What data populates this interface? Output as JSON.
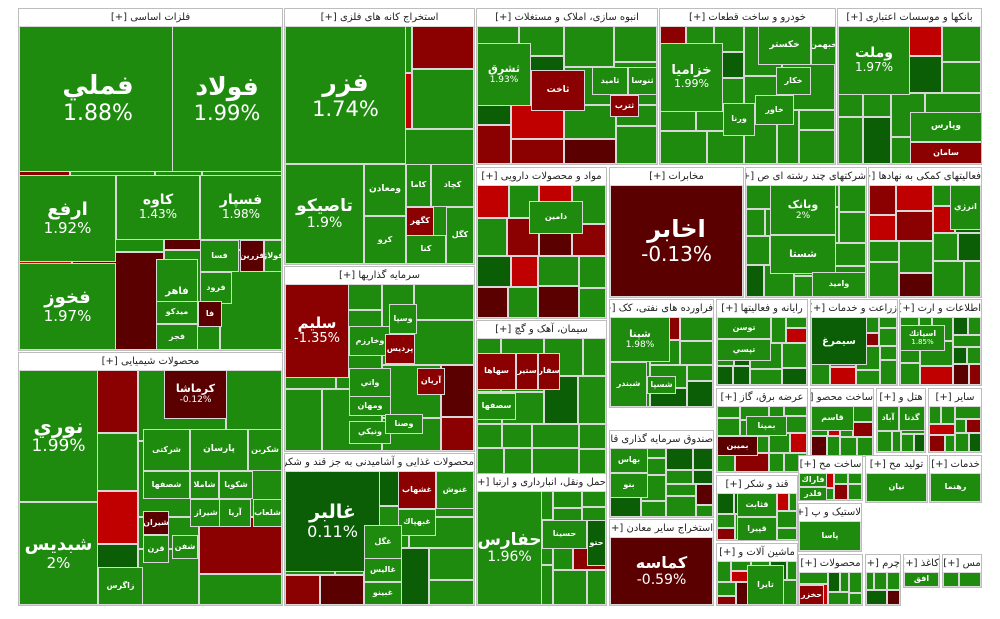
{
  "palette": {
    "green": "#1e8b0e",
    "green_dark": "#0b5e06",
    "red": "#c00000",
    "red_dark": "#5a0000",
    "red_mid": "#8b0000"
  },
  "sectors": [
    {
      "title": "فلزات اساسی [+]",
      "tiles": [
        {
          "sym": "فملي",
          "pct": "1.88%",
          "c": "green"
        },
        {
          "sym": "فولاد",
          "pct": "1.99%",
          "c": "green"
        },
        {
          "sym": "ارفع",
          "pct": "1.92%",
          "c": "green"
        },
        {
          "sym": "فخوز",
          "pct": "1.97%",
          "c": "green"
        },
        {
          "sym": "کاوه",
          "pct": "1.43%",
          "c": "green"
        },
        {
          "sym": "فسپار",
          "pct": "1.98%",
          "c": "green"
        },
        {
          "sym": "فسا",
          "c": "green"
        },
        {
          "sym": "فاهر",
          "c": "green"
        },
        {
          "sym": "فزرين",
          "c": "red_dark"
        },
        {
          "sym": "فولاژ",
          "c": "green"
        },
        {
          "sym": "فرود",
          "c": "green"
        },
        {
          "sym": "فا",
          "c": "red_dark"
        },
        {
          "sym": "فجر",
          "c": "green"
        },
        {
          "sym": "ميدکو",
          "c": "green"
        }
      ]
    },
    {
      "title": "استخراج کانه های فلزی [+]",
      "tiles": [
        {
          "sym": "فزر",
          "pct": "1.74%",
          "c": "green"
        },
        {
          "sym": "تاصيكو",
          "pct": "1.9%",
          "c": "green"
        },
        {
          "sym": "ومعادن",
          "c": "green"
        },
        {
          "sym": "کاما",
          "c": "green"
        },
        {
          "sym": "کچاد",
          "c": "green"
        },
        {
          "sym": "کگهر",
          "c": "red_mid"
        },
        {
          "sym": "کگل",
          "c": "green"
        },
        {
          "sym": "كرو",
          "c": "green"
        },
        {
          "sym": "کنا",
          "c": "green"
        }
      ]
    },
    {
      "title": "انبوه سازی، املاک و مستغلات [+]",
      "tiles": [
        {
          "sym": "ثشرق",
          "pct": "1.93%",
          "c": "green"
        },
        {
          "sym": "ثامید",
          "c": "green"
        },
        {
          "sym": "ثنوسا",
          "c": "green"
        },
        {
          "sym": "ثترب",
          "c": "red_mid"
        },
        {
          "sym": "ثاخت",
          "c": "red_mid"
        }
      ]
    },
    {
      "title": "خودرو و ساخت قطعات [+]",
      "tiles": [
        {
          "sym": "خزاميا",
          "pct": "1.99%",
          "c": "green"
        },
        {
          "sym": "خکستر",
          "c": "green"
        },
        {
          "sym": "خبهمن",
          "c": "green"
        },
        {
          "sym": "خکار",
          "c": "green"
        },
        {
          "sym": "خاور",
          "c": "green"
        },
        {
          "sym": "ورنا",
          "c": "green"
        }
      ]
    },
    {
      "title": "بانکها و موسسات اعتباری [+]",
      "tiles": [
        {
          "sym": "وملت",
          "pct": "1.97%",
          "c": "green"
        },
        {
          "sym": "وپارس",
          "c": "green"
        },
        {
          "sym": "سامان",
          "c": "red_mid"
        }
      ]
    },
    {
      "title": "مواد و محصولات دارویی [+]",
      "tiles": [
        {
          "sym": "دامین",
          "c": "green"
        }
      ]
    },
    {
      "title": "مخابرات [+]",
      "tiles": [
        {
          "sym": "اخابر",
          "pct": "-0.13%",
          "c": "red_dark"
        }
      ]
    },
    {
      "title": "شرکتهای چند رشته ای ص [+]",
      "tiles": [
        {
          "sym": "وبانک",
          "pct": "2%",
          "c": "green"
        },
        {
          "sym": "شستا",
          "c": "green"
        },
        {
          "sym": "واميد",
          "c": "green"
        }
      ]
    },
    {
      "title": "فعالیتهای کمکی به نهادها [+]",
      "tiles": [
        {
          "sym": "انرژي",
          "c": "green"
        }
      ]
    },
    {
      "title": "محصولات شیمیایی [+]",
      "tiles": [
        {
          "sym": "نوري",
          "pct": "1.99%",
          "c": "green"
        },
        {
          "sym": "شبديس",
          "pct": "2%",
          "c": "green"
        },
        {
          "sym": "کرماشا",
          "pct": "-0.12%",
          "c": "red_dark"
        },
        {
          "sym": "شرکتی",
          "c": "green"
        },
        {
          "sym": "پارسان",
          "c": "green"
        },
        {
          "sym": "شکربن",
          "c": "green"
        },
        {
          "sym": "شصفها",
          "c": "green"
        },
        {
          "sym": "شاملا",
          "c": "green"
        },
        {
          "sym": "شکويا",
          "c": "green"
        },
        {
          "sym": "شيراز",
          "c": "green"
        },
        {
          "sym": "آريا",
          "c": "green"
        },
        {
          "sym": "شلعاب",
          "c": "green"
        },
        {
          "sym": "شيران",
          "c": "red_dark"
        },
        {
          "sym": "شفن",
          "c": "green"
        },
        {
          "sym": "قرن",
          "c": "green"
        },
        {
          "sym": "زاگرس",
          "c": "green"
        }
      ]
    },
    {
      "title": "سرمایه گذاریها [+]",
      "tiles": [
        {
          "sym": "سليم",
          "pct": "-1.35%",
          "c": "red_mid"
        },
        {
          "sym": "وخارزم",
          "c": "green"
        },
        {
          "sym": "وسپا",
          "c": "green"
        },
        {
          "sym": "پردیس",
          "c": "red_mid"
        },
        {
          "sym": "واتي",
          "c": "green"
        },
        {
          "sym": "آريان",
          "c": "red_mid"
        },
        {
          "sym": "ومهان",
          "c": "green"
        },
        {
          "sym": "ونيكي",
          "c": "green"
        },
        {
          "sym": "وصنا",
          "c": "green"
        }
      ]
    },
    {
      "title": "سیمان، آهک و گچ [+]",
      "tiles": [
        {
          "sym": "سفار",
          "c": "red_mid"
        },
        {
          "sym": "ستير",
          "c": "red_mid"
        },
        {
          "sym": "سهاها",
          "c": "red_mid"
        },
        {
          "sym": "سصفها",
          "c": "green"
        }
      ]
    },
    {
      "title": "فراورده های نفتی، کک [+]",
      "tiles": [
        {
          "sym": "شپنا",
          "pct": "1.98%",
          "c": "green"
        },
        {
          "sym": "شبندر",
          "c": "green"
        },
        {
          "sym": "شسپا",
          "c": "green"
        }
      ]
    },
    {
      "title": "رایانه و فعالیتها [+]",
      "tiles": [
        {
          "sym": "توسن",
          "c": "green"
        },
        {
          "sym": "تپسي",
          "c": "green"
        }
      ]
    },
    {
      "title": "زراعت و خدمات [+]",
      "tiles": [
        {
          "sym": "سيمرغ",
          "c": "green_dark"
        }
      ]
    },
    {
      "title": "اطلاعات و ارت [+]",
      "tiles": [
        {
          "sym": "اسياتك",
          "pct": "1.85%",
          "c": "green"
        }
      ]
    },
    {
      "title": "محصولات غذایی و آشامیدنی به جز قند و شکر [+]",
      "tiles": [
        {
          "sym": "غالبر",
          "pct": "0.11%",
          "c": "green_dark"
        },
        {
          "sym": "غشهاب",
          "c": "red_mid"
        },
        {
          "sym": "غنوش",
          "c": "green"
        },
        {
          "sym": "غبهپاك",
          "c": "green"
        },
        {
          "sym": "غگل",
          "c": "green"
        },
        {
          "sym": "غاليس",
          "c": "green"
        },
        {
          "sym": "غبينو",
          "c": "green"
        }
      ]
    },
    {
      "title": "حمل ونقل، انبارداری و ارتبا [+]",
      "tiles": [
        {
          "sym": "حفارس",
          "pct": "1.96%",
          "c": "green"
        },
        {
          "sym": "حسينا",
          "c": "green"
        },
        {
          "sym": "حتو",
          "c": "green_dark"
        }
      ]
    },
    {
      "title": "صندوق سرمایه گذاری قابل معامله [+]",
      "tiles": [
        {
          "sym": "بهاس",
          "c": "green"
        },
        {
          "sym": "بنو",
          "c": "green"
        }
      ]
    },
    {
      "title": "استخراج سایر معادن [+]",
      "tiles": [
        {
          "sym": "کماسه",
          "pct": "-0.59%",
          "c": "red_dark"
        }
      ]
    },
    {
      "title": "عرضه برق، گاز [+]",
      "tiles": [
        {
          "sym": "بمپنا",
          "c": "green"
        },
        {
          "sym": "بمیین",
          "c": "red_dark"
        }
      ]
    },
    {
      "title": "ساخت محصو [+]",
      "tiles": [
        {
          "sym": "قاسم",
          "c": "green"
        }
      ]
    },
    {
      "title": "قند و شکر [+]",
      "tiles": [
        {
          "sym": "قثابت",
          "c": "green"
        },
        {
          "sym": "قپيرا",
          "c": "green"
        }
      ]
    },
    {
      "title": "ماشین آلات و [+]",
      "tiles": [
        {
          "sym": "تايرا",
          "c": "green"
        }
      ]
    },
    {
      "title": "لاستیک و پ [+]",
      "tiles": [
        {
          "sym": "پاسا",
          "c": "green"
        }
      ]
    },
    {
      "title": "توليد مح [+]",
      "tiles": [
        {
          "sym": "نيان",
          "c": "green"
        }
      ]
    },
    {
      "title": "ساخت مح [+]",
      "tiles": [
        {
          "sym": "فاراك",
          "c": "green"
        },
        {
          "sym": "فلدر",
          "c": "green"
        }
      ]
    },
    {
      "title": "خدمات [+]",
      "tiles": [
        {
          "sym": "رهنما",
          "c": "green"
        }
      ]
    },
    {
      "title": "هتل و [+]",
      "tiles": [
        {
          "sym": "آباد",
          "c": "green"
        },
        {
          "sym": "گدنا",
          "c": "green"
        }
      ]
    },
    {
      "title": "ساير [+]",
      "tiles": []
    },
    {
      "title": "محصولات [+]",
      "tiles": [
        {
          "sym": "حخزر",
          "c": "red_mid"
        }
      ]
    },
    {
      "title": "چرم [+]",
      "tiles": []
    },
    {
      "title": "کاغذ [+]",
      "tiles": [
        {
          "sym": "افق",
          "c": "green"
        }
      ]
    },
    {
      "title": "مس [+]",
      "tiles": []
    }
  ]
}
